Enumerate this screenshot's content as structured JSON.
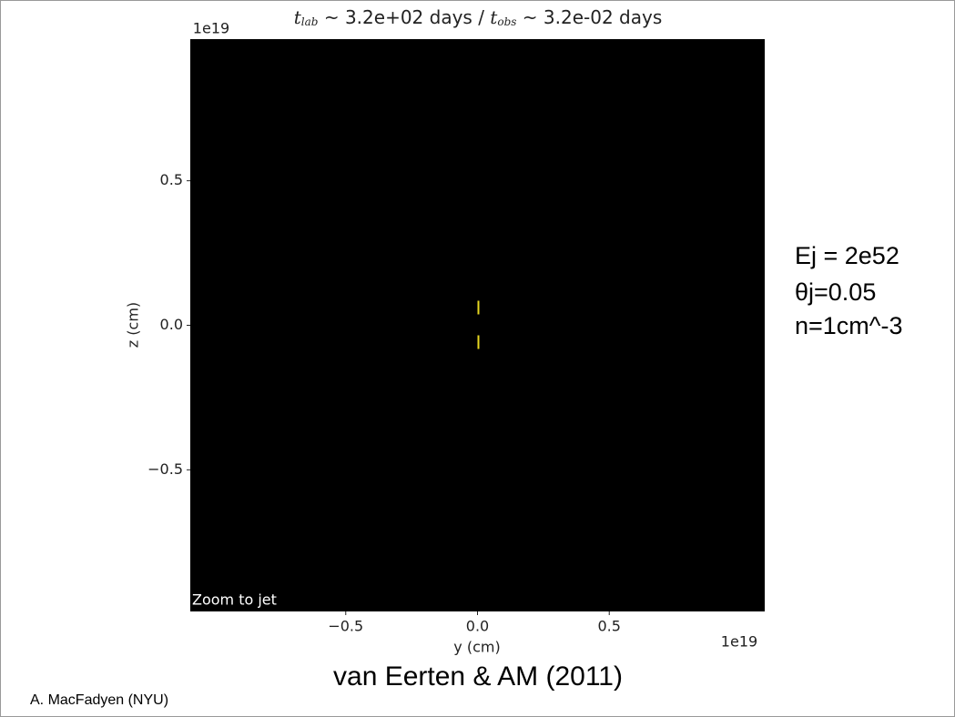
{
  "chart_data": {
    "type": "image",
    "title_parts": [
      "t",
      "lab",
      " ~ 3.2e+02 days / ",
      "t",
      "obs",
      " ~ 3.2e-02 days"
    ],
    "x_label": "y (cm)",
    "y_label": "z (cm)",
    "x_offset_text": "1e19",
    "y_offset_text": "1e19",
    "annotation": "Zoom to jet",
    "background": "#000000",
    "jet_color": "#e8d820",
    "xlim": [
      -1.09e+19,
      1.09e+19
    ],
    "ylim": [
      -9.9e+18,
      9.9e+18
    ],
    "xticks": [
      {
        "value": -5e+18,
        "label": "−0.5"
      },
      {
        "value": 0,
        "label": "0.0"
      },
      {
        "value": 5e+18,
        "label": "0.5"
      }
    ],
    "yticks": [
      {
        "value": -5e+18,
        "label": "−0.5"
      },
      {
        "value": 0,
        "label": "0.0"
      },
      {
        "value": 5e+18,
        "label": "0.5"
      }
    ]
  },
  "side_text": [
    "Ej = 2e52",
    "θj=0.05",
    "n=1cm^-3"
  ],
  "caption": "van Eerten & AM (2011)",
  "credit": "A. MacFadyen (NYU)"
}
